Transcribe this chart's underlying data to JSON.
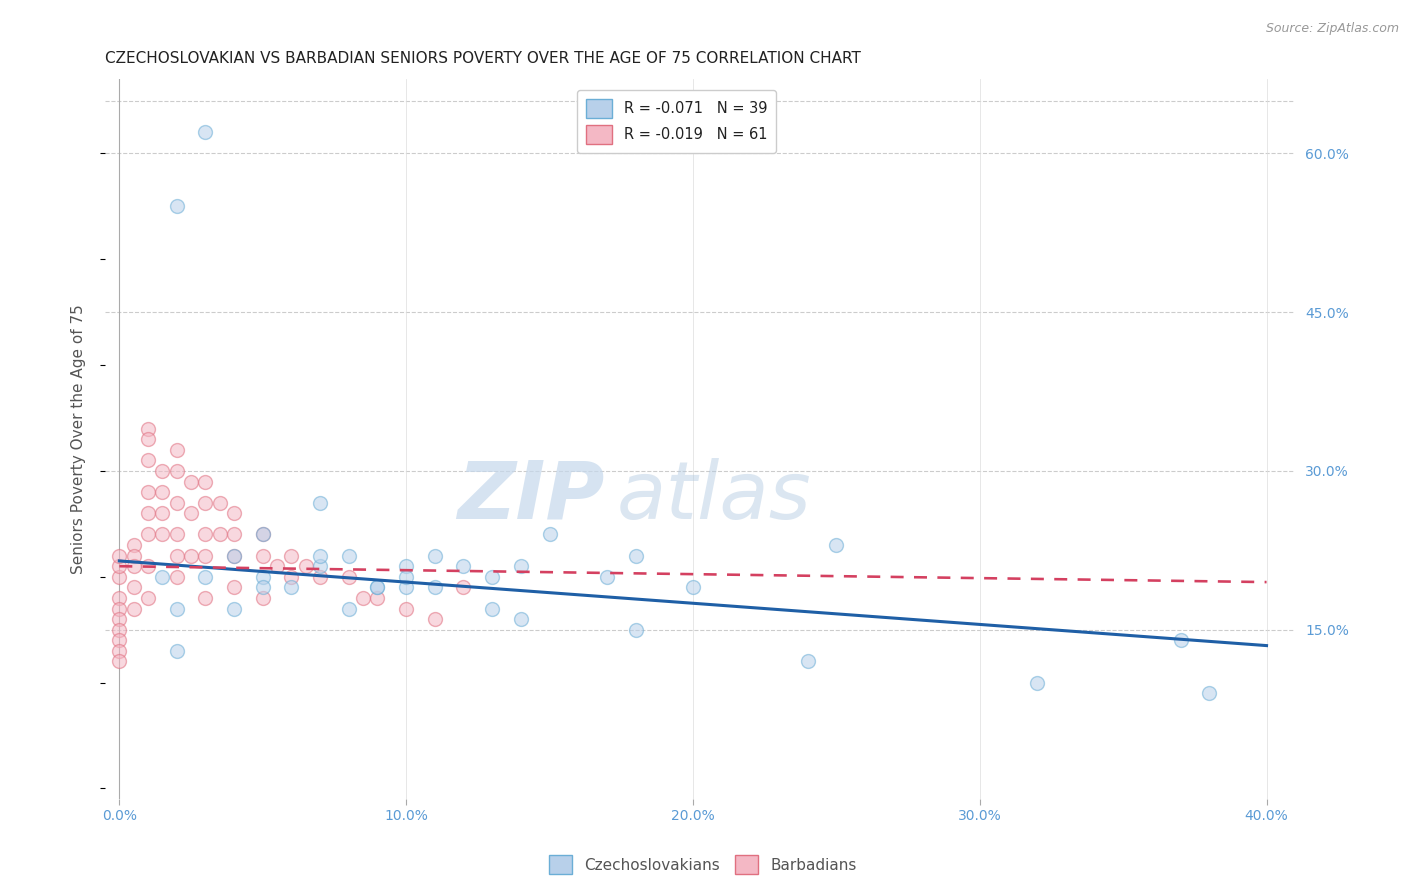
{
  "title": "CZECHOSLOVAKIAN VS BARBADIAN SENIORS POVERTY OVER THE AGE OF 75 CORRELATION CHART",
  "source": "Source: ZipAtlas.com",
  "ylabel": "Seniors Poverty Over the Age of 75",
  "xlabel_ticks": [
    "0.0%",
    "10.0%",
    "20.0%",
    "30.0%",
    "40.0%"
  ],
  "xlabel_vals": [
    0,
    10,
    20,
    30,
    40
  ],
  "ylabel_ticks_right": [
    "15.0%",
    "30.0%",
    "45.0%",
    "60.0%"
  ],
  "ylabel_vals_right": [
    15,
    30,
    45,
    60
  ],
  "xlim": [
    -0.5,
    41
  ],
  "ylim": [
    -1,
    67
  ],
  "watermark_zip": "ZIP",
  "watermark_atlas": "atlas",
  "legend_czecho": "R = -0.071   N = 39",
  "legend_barbadian": "R = -0.019   N = 61",
  "czecho_face": "#b8d0ea",
  "czecho_edge": "#6baed6",
  "czecho_line": "#1f5fa6",
  "barbadian_face": "#f4b8c5",
  "barbadian_edge": "#e07080",
  "barbadian_line": "#d44060",
  "background_color": "#ffffff",
  "grid_color": "#cccccc",
  "title_fontsize": 11,
  "axis_label_fontsize": 11,
  "tick_fontsize": 10,
  "scatter_size": 100,
  "scatter_alpha": 0.55,
  "line_width": 2.2,
  "czecho_x": [
    1.5,
    10,
    2,
    5,
    2,
    3,
    4,
    4,
    5,
    5,
    6,
    7,
    7,
    8,
    8,
    9,
    9,
    10,
    10,
    11,
    11,
    12,
    13,
    13,
    14,
    15,
    17,
    18,
    20,
    25,
    37,
    38,
    3,
    2,
    14,
    18,
    24,
    32,
    7
  ],
  "czecho_y": [
    20,
    19,
    17,
    20,
    13,
    20,
    22,
    17,
    24,
    19,
    19,
    21,
    22,
    22,
    17,
    19,
    19,
    21,
    20,
    22,
    19,
    21,
    20,
    17,
    21,
    24,
    20,
    22,
    19,
    23,
    14,
    9,
    62,
    55,
    16,
    15,
    12,
    10,
    27
  ],
  "barbadian_x": [
    0,
    0,
    0,
    0,
    0,
    0,
    0,
    0,
    0,
    0,
    0.5,
    0.5,
    0.5,
    0.5,
    0.5,
    1,
    1,
    1,
    1,
    1,
    1,
    1,
    1,
    1.5,
    1.5,
    1.5,
    1.5,
    2,
    2,
    2,
    2,
    2,
    2,
    2.5,
    2.5,
    2.5,
    3,
    3,
    3,
    3,
    3,
    3.5,
    3.5,
    4,
    4,
    4,
    4,
    5,
    5,
    5,
    5.5,
    6,
    6,
    6.5,
    7,
    8,
    8.5,
    9,
    10,
    11,
    12
  ],
  "barbadian_y": [
    20,
    21,
    22,
    18,
    17,
    16,
    15,
    14,
    13,
    12,
    23,
    22,
    21,
    19,
    17,
    34,
    33,
    31,
    28,
    26,
    24,
    21,
    18,
    30,
    28,
    26,
    24,
    32,
    30,
    27,
    24,
    22,
    20,
    29,
    26,
    22,
    29,
    27,
    24,
    22,
    18,
    27,
    24,
    26,
    24,
    22,
    19,
    24,
    22,
    18,
    21,
    22,
    20,
    21,
    20,
    20,
    18,
    18,
    17,
    16,
    19
  ],
  "reg_czecho_x0": 0,
  "reg_czecho_y0": 21.5,
  "reg_czecho_x1": 40,
  "reg_czecho_y1": 13.5,
  "reg_barbadian_x0": 0,
  "reg_barbadian_y0": 21.0,
  "reg_barbadian_x1": 40,
  "reg_barbadian_y1": 19.5
}
